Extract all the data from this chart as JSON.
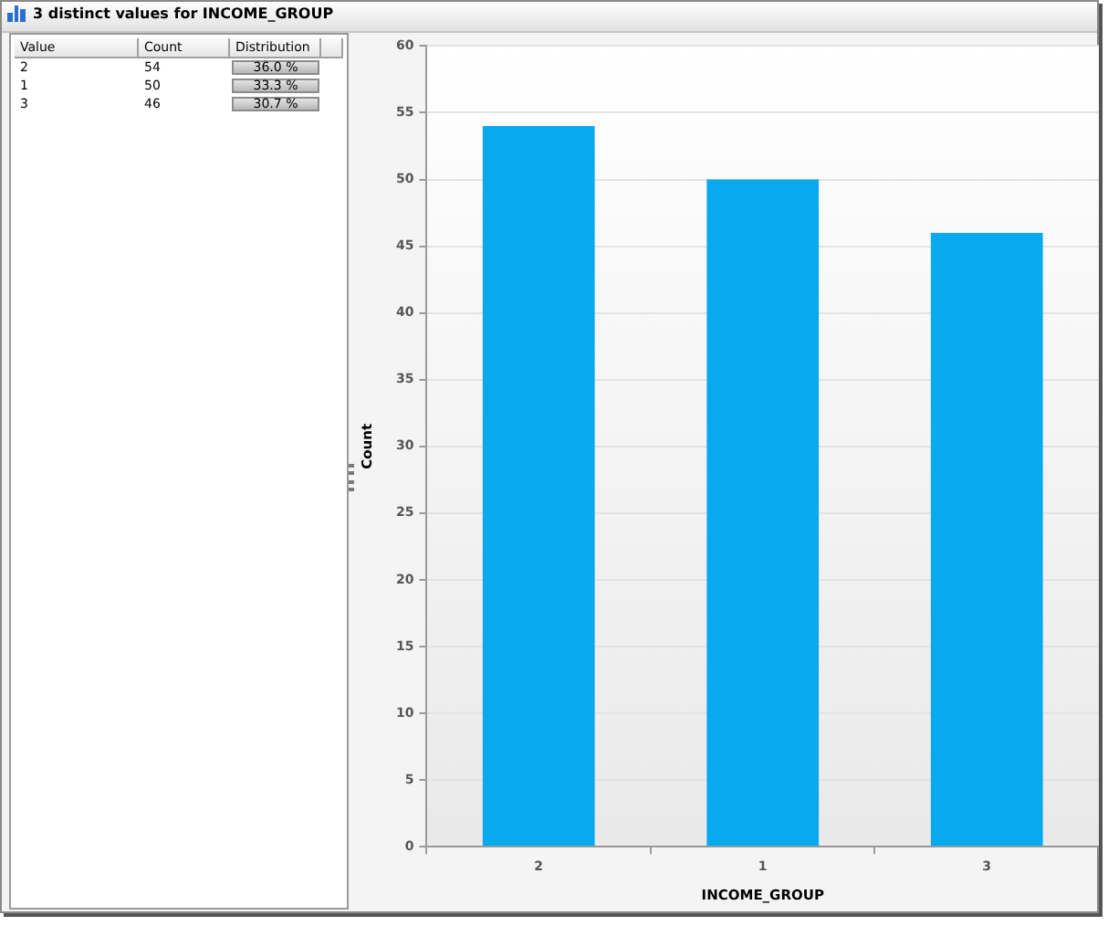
{
  "chart_data": [
    {
      "type": "other",
      "title": "3 distinct values for INCOME_GROUP",
      "annotations": [
        "Value",
        "Count",
        "Distribution",
        "2",
        "54",
        "36.0 %",
        "1",
        "50",
        "33.3 %",
        "3",
        "46",
        "30.7 %"
      ]
    },
    {
      "type": "bar",
      "xlabel": "INCOME_GROUP",
      "ylabel": "Count",
      "categories": [
        "2",
        "1",
        "3"
      ],
      "values": [
        54,
        50,
        46
      ],
      "color": "#09a9ee",
      "ylim": [
        0,
        60
      ],
      "yticks": [
        0,
        5,
        10,
        15,
        20,
        25,
        30,
        35,
        40,
        45,
        50,
        55,
        60
      ],
      "grid": "y"
    }
  ]
}
